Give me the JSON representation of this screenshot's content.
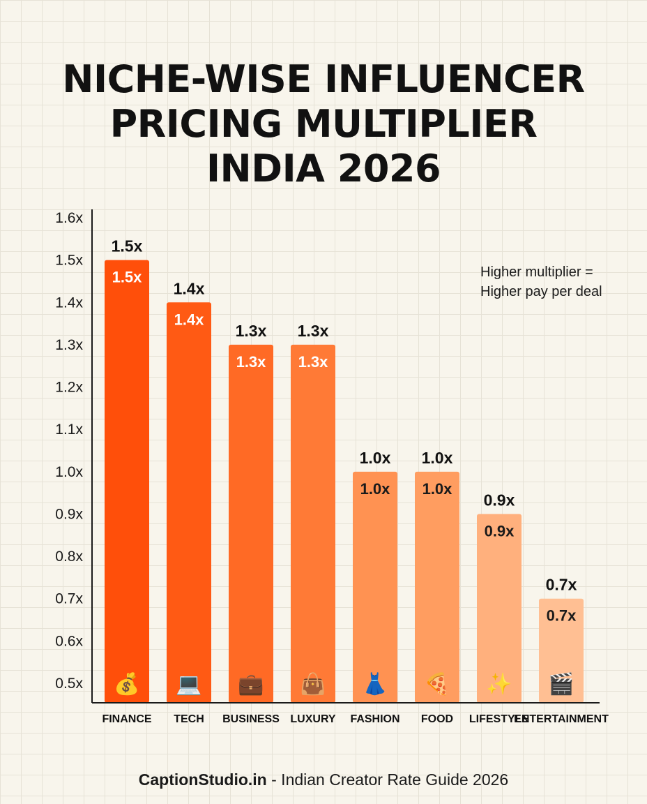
{
  "title_lines": [
    "NICHE-WISE INFLUENCER",
    "PRICING MULTIPLIER",
    "INDIA 2026"
  ],
  "note_lines": [
    "Higher multiplier =",
    "Higher pay per deal"
  ],
  "footer": {
    "brand": "CaptionStudio.in",
    "text": " - Indian Creator Rate Guide 2026"
  },
  "colors": {
    "bars": [
      "#ff4f0a",
      "#ff5a14",
      "#ff6a25",
      "#ff7a36",
      "#ff9252",
      "#ff9d60",
      "#ffb07d",
      "#ffbf93"
    ],
    "axis": "#1a1a1a"
  },
  "chart_data": {
    "type": "bar",
    "categories": [
      "FINANCE",
      "TECH",
      "BUSINESS",
      "LUXURY",
      "FASHION",
      "FOOD",
      "LIFESTYLE",
      "ENTERTAINMENT"
    ],
    "values": [
      1.5,
      1.4,
      1.3,
      1.3,
      1.0,
      1.0,
      0.9,
      0.7
    ],
    "value_labels": [
      "1.5x",
      "1.4x",
      "1.3x",
      "1.3x",
      "1.0x",
      "1.0x",
      "0.9x",
      "0.7x"
    ],
    "icons": [
      "money-bag-icon",
      "laptop-icon",
      "briefcase-icon",
      "handbag-icon",
      "dress-icon",
      "pizza-icon",
      "sparkles-icon",
      "clapperboard-icon"
    ],
    "icon_glyphs": [
      "💰",
      "💻",
      "💼",
      "👜",
      "👗",
      "🍕",
      "✨",
      "🎬"
    ],
    "ylim": [
      0.5,
      1.6
    ],
    "yticks": [
      0.5,
      0.6,
      0.7,
      0.8,
      0.9,
      1.0,
      1.1,
      1.2,
      1.3,
      1.4,
      1.5,
      1.6
    ],
    "ytick_labels": [
      "0.5x",
      "0.6x",
      "0.7x",
      "0.8x",
      "0.9x",
      "1.0x",
      "1.1x",
      "1.2x",
      "1.3x",
      "1.4x",
      "1.5x",
      "1.6x"
    ],
    "title": "NICHE-WISE INFLUENCER PRICING MULTIPLIER INDIA 2026",
    "xlabel": "",
    "ylabel": "",
    "grid": true
  }
}
